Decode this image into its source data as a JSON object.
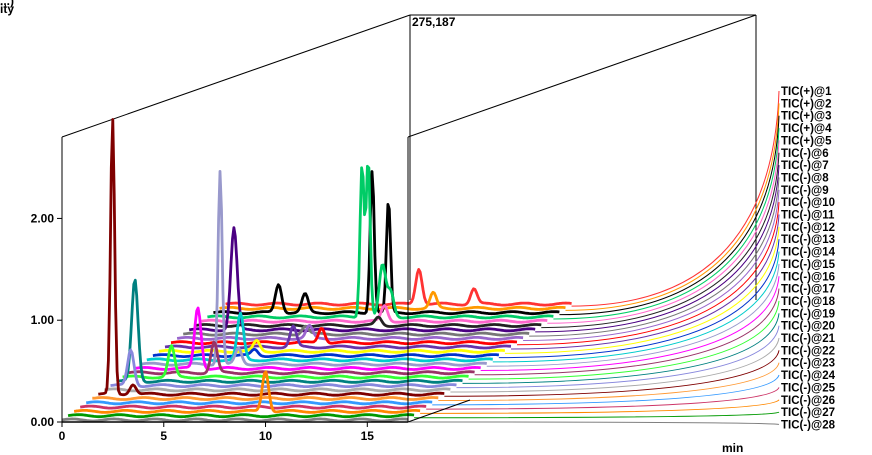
{
  "chart_data": {
    "type": "line",
    "view": "3d-stacked",
    "title": "",
    "ylabel_fragment": "ity",
    "ylabel_fragment_top": "...)",
    "xlabel": "min",
    "corner_label": "275,187",
    "x_ticks": [
      "0",
      "5",
      "10",
      "15"
    ],
    "y_ticks": [
      "0.00",
      "1.00",
      "2.00"
    ],
    "xlim": [
      0,
      17
    ],
    "ylim": [
      0,
      2.8
    ],
    "x_tick_values": [
      0,
      5,
      10,
      15
    ],
    "y_tick_values": [
      0,
      1,
      2
    ],
    "series": [
      {
        "name": "TIC(+)@1",
        "color": "#ff3333",
        "peaks": [
          [
            9.5,
            0.35
          ],
          [
            12.2,
            0.15
          ]
        ]
      },
      {
        "name": "TIC(+)@2",
        "color": "#ff9900",
        "peaks": [
          [
            10.5,
            0.15
          ]
        ]
      },
      {
        "name": "TIC(+)@3",
        "color": "#000000",
        "peaks": [
          [
            3.2,
            0.28
          ],
          [
            4.5,
            0.18
          ],
          [
            7.8,
            1.4
          ],
          [
            8.6,
            1.1
          ]
        ]
      },
      {
        "name": "TIC(+)@4",
        "color": "#00cc66",
        "peaks": [
          [
            7.6,
            1.5
          ],
          [
            7.9,
            1.55
          ],
          [
            8.6,
            0.5
          ],
          [
            9.0,
            0.25
          ]
        ]
      },
      {
        "name": "TIC(+)@5",
        "color": "#ff66cc",
        "peaks": [
          [
            9.0,
            0.15
          ]
        ]
      },
      {
        "name": "TIC(-)@6",
        "color": "#222222",
        "peaks": [
          [
            9.0,
            0.08
          ]
        ]
      },
      {
        "name": "TIC(-)@7",
        "color": "#4b0082",
        "peaks": [
          [
            2.2,
            1.0
          ]
        ]
      },
      {
        "name": "TIC(-)@8",
        "color": "#777777",
        "peaks": [
          [
            6.0,
            0.08
          ]
        ]
      },
      {
        "name": "TIC(-)@9",
        "color": "#9966cc",
        "peaks": [
          [
            6.5,
            0.12
          ]
        ]
      },
      {
        "name": "TIC(-)@10",
        "color": "#ff0000",
        "peaks": [
          [
            7.4,
            0.15
          ]
        ]
      },
      {
        "name": "TIC(-)@11",
        "color": "#6633aa",
        "peaks": [
          [
            6.3,
            0.2
          ]
        ]
      },
      {
        "name": "TIC(-)@12",
        "color": "#ffff00",
        "peaks": [
          [
            4.8,
            0.1
          ]
        ]
      },
      {
        "name": "TIC(-)@13",
        "color": "#0033cc",
        "peaks": [
          [
            5.0,
            0.06
          ]
        ]
      },
      {
        "name": "TIC(-)@14",
        "color": "#00cccc",
        "peaks": [
          [
            4.6,
            0.45
          ]
        ]
      },
      {
        "name": "TIC(-)@15",
        "color": "#9999cc",
        "peaks": [
          [
            3.9,
            1.9
          ],
          [
            4.8,
            0.15
          ]
        ]
      },
      {
        "name": "TIC(-)@16",
        "color": "#ff00ff",
        "peaks": [
          [
            3.1,
            0.6
          ]
        ]
      },
      {
        "name": "TIC(-)@17",
        "color": "#993366",
        "peaks": [
          [
            4.2,
            0.3
          ]
        ]
      },
      {
        "name": "TIC(-)@18",
        "color": "#33ff33",
        "peaks": [
          [
            2.4,
            0.3
          ]
        ]
      },
      {
        "name": "TIC(-)@19",
        "color": "#008080",
        "peaks": [
          [
            0.9,
            1.0
          ]
        ]
      },
      {
        "name": "TIC(-)@20",
        "color": "#8888dd",
        "peaks": [
          [
            1.0,
            0.35
          ]
        ]
      },
      {
        "name": "TIC(-)@21",
        "color": "#aaaaaa",
        "peaks": []
      },
      {
        "name": "TIC(-)@22",
        "color": "#7f0000",
        "peaks": [
          [
            0.7,
            2.7
          ],
          [
            1.7,
            0.1
          ]
        ]
      },
      {
        "name": "TIC(-)@23",
        "color": "#ff9933",
        "peaks": [
          [
            -0.5,
            0.6
          ]
        ]
      },
      {
        "name": "TIC(-)@24",
        "color": "#3399ff",
        "peaks": []
      },
      {
        "name": "TIC(-)@25",
        "color": "#cc3366",
        "peaks": []
      },
      {
        "name": "TIC(-)@26",
        "color": "#ff8800",
        "peaks": [
          [
            9.4,
            0.4
          ]
        ]
      },
      {
        "name": "TIC(-)@27",
        "color": "#009900",
        "peaks": []
      },
      {
        "name": "TIC(-)@28",
        "color": "#808080",
        "peaks": []
      }
    ]
  }
}
